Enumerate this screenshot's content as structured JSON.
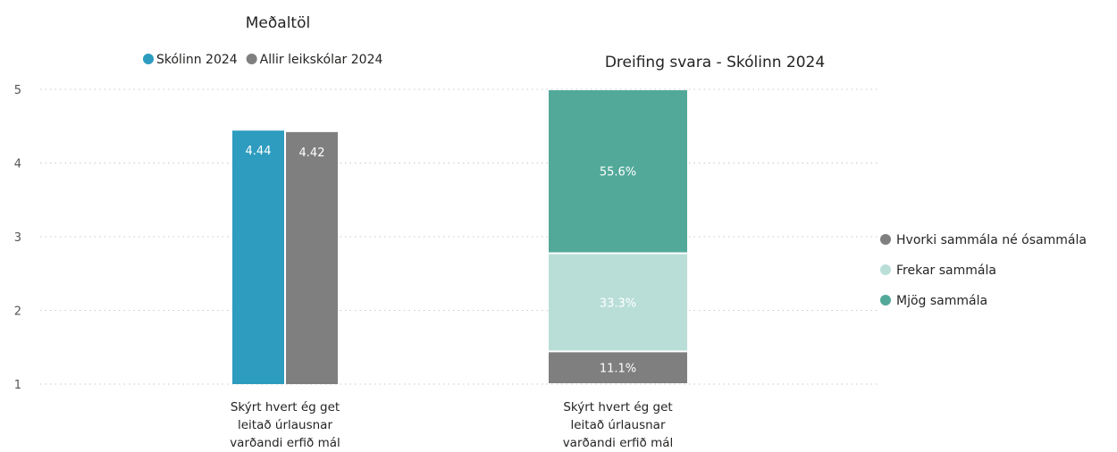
{
  "chart_data": [
    {
      "type": "bar",
      "title": "Meðaltöl",
      "categories": [
        "Skýrt hvert ég get leitað úrlausnar varðandi erfið mál"
      ],
      "category_lines": [
        "Skýrt hvert ég get",
        "leitað úrlausnar",
        "varðandi erfið mál"
      ],
      "series": [
        {
          "name": "Skólinn 2024",
          "color": "#2d9cbf",
          "values": [
            4.44
          ],
          "labels": [
            "4.44"
          ]
        },
        {
          "name": "Allir leikskólar 2024",
          "color": "#7f7f7f",
          "values": [
            4.42
          ],
          "labels": [
            "4.42"
          ]
        }
      ],
      "yticks": [
        "1",
        "2",
        "3",
        "4",
        "5"
      ],
      "ylim": [
        1,
        5
      ],
      "grid": true,
      "legend": "top"
    },
    {
      "type": "bar",
      "stacked": true,
      "title": "Dreifing svara - Skólinn 2024",
      "categories": [
        "Skýrt hvert ég get leitað úrlausnar varðandi erfið mál"
      ],
      "category_lines": [
        "Skýrt hvert ég get",
        "leitað úrlausnar",
        "varðandi erfið mál"
      ],
      "series": [
        {
          "name": "Hvorki sammála né ósammála",
          "color": "#7f7f7f",
          "values": [
            11.1
          ],
          "labels": [
            "11.1%"
          ]
        },
        {
          "name": "Frekar sammála",
          "color": "#b9ded8",
          "values": [
            33.3
          ],
          "labels": [
            "33.3%"
          ]
        },
        {
          "name": "Mjög sammála",
          "color": "#52a99a",
          "values": [
            55.6
          ],
          "labels": [
            "55.6%"
          ]
        }
      ],
      "ylim": [
        0,
        100
      ],
      "legend": "right"
    }
  ]
}
